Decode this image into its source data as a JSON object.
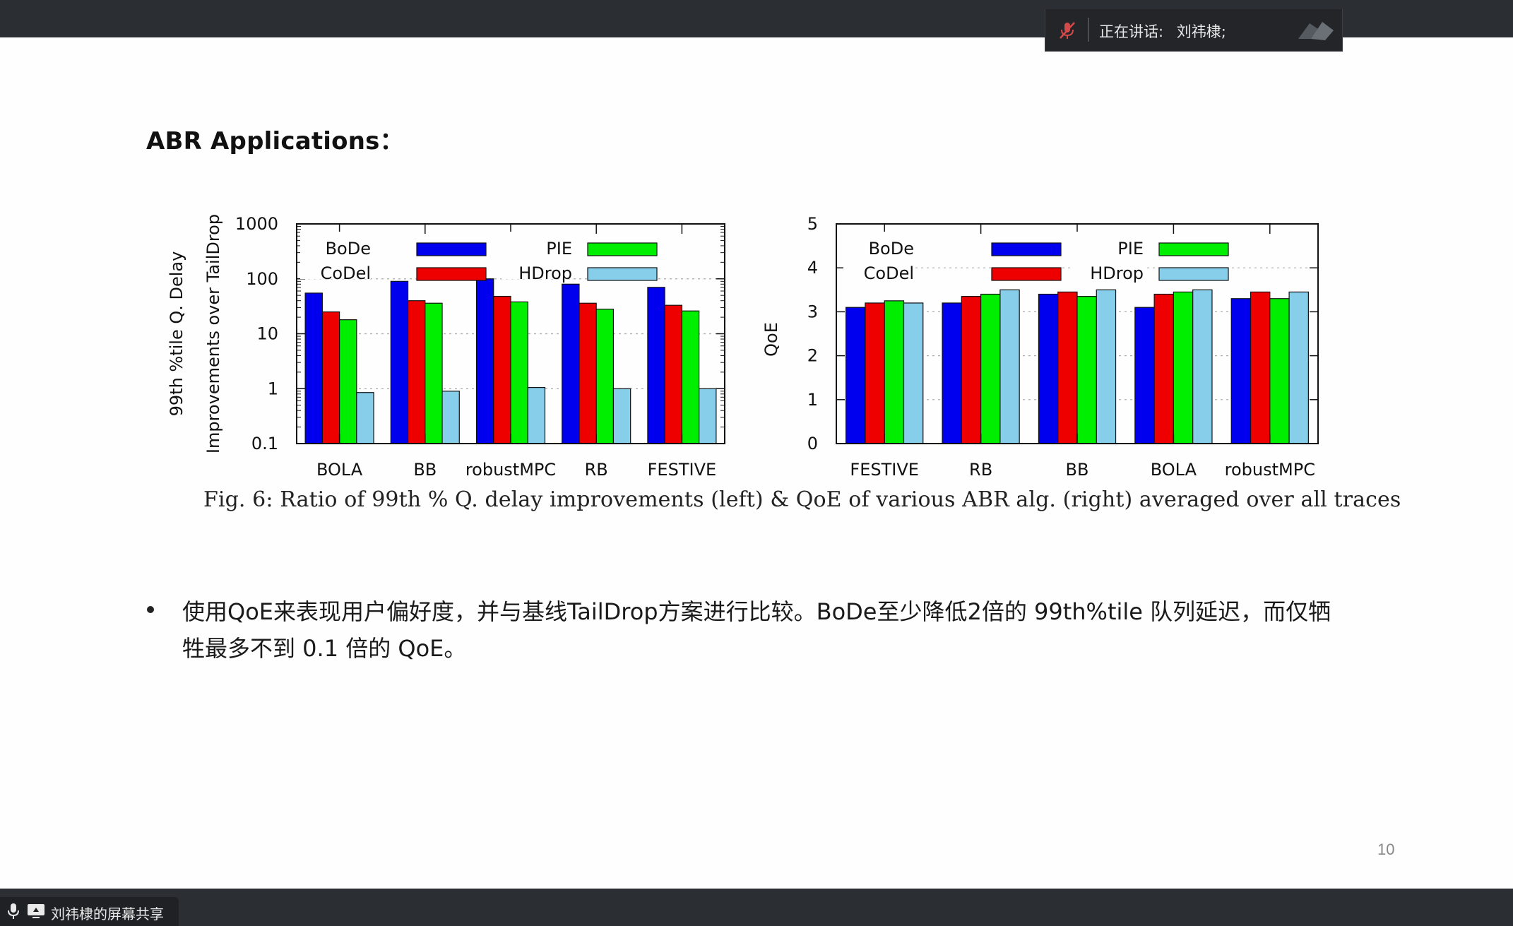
{
  "meeting": {
    "speaking_label": "正在讲话:",
    "speaker_name": "刘祎棣;",
    "share_label": "刘祎棣的屏幕共享"
  },
  "slide": {
    "title": "ABR Applications：",
    "caption": "Fig. 6: Ratio of 99th % Q. delay improvements (left) & QoE of various ABR alg. (right) averaged over all traces",
    "bullet_text": "使用QoE来表现用户偏好度，并与基线TailDrop方案进行比较。BoDe至少降低2倍的 99th%tile 队列延迟，而仅牺牲最多不到 0.1 倍的 QoE。",
    "page_number": "10"
  },
  "colors": {
    "BoDe": "#0000ee",
    "CoDel": "#ee0000",
    "PIE": "#00ee00",
    "HDrop": "#87ceeb"
  },
  "chart_data": [
    {
      "type": "bar",
      "scale": "log",
      "categories": [
        "BOLA",
        "BB",
        "robustMPC",
        "RB",
        "FESTIVE"
      ],
      "series": [
        {
          "name": "BoDe",
          "values": [
            55,
            90,
            100,
            80,
            70
          ]
        },
        {
          "name": "CoDel",
          "values": [
            25,
            40,
            48,
            36,
            33
          ]
        },
        {
          "name": "PIE",
          "values": [
            18,
            36,
            38,
            28,
            26
          ]
        },
        {
          "name": "HDrop",
          "values": [
            0.85,
            0.9,
            1.05,
            1.0,
            1.0
          ]
        }
      ],
      "ylim": [
        0.1,
        1000
      ],
      "yticks": [
        "0.1",
        "1",
        "10",
        "100",
        "1000"
      ],
      "ylabel_lines": [
        "99th %tile Q. Delay",
        "Improvements over TailDrop"
      ],
      "legend": "top-inside"
    },
    {
      "type": "bar",
      "scale": "linear",
      "categories": [
        "FESTIVE",
        "RB",
        "BB",
        "BOLA",
        "robustMPC"
      ],
      "series": [
        {
          "name": "BoDe",
          "values": [
            3.1,
            3.2,
            3.4,
            3.1,
            3.3
          ]
        },
        {
          "name": "CoDel",
          "values": [
            3.2,
            3.35,
            3.45,
            3.4,
            3.45
          ]
        },
        {
          "name": "PIE",
          "values": [
            3.25,
            3.4,
            3.35,
            3.45,
            3.3
          ]
        },
        {
          "name": "HDrop",
          "values": [
            3.2,
            3.5,
            3.5,
            3.5,
            3.45
          ]
        }
      ],
      "ylim": [
        0,
        5
      ],
      "yticks": [
        "0",
        "1",
        "2",
        "3",
        "4",
        "5"
      ],
      "ylabel": "QoE",
      "legend": "top-inside"
    }
  ]
}
